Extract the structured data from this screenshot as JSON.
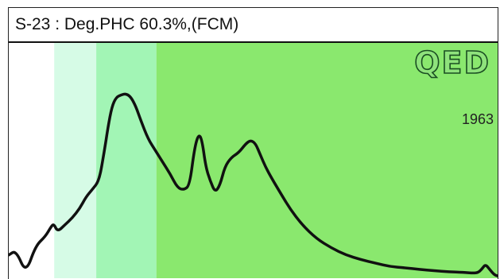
{
  "chart_data": {
    "type": "line",
    "title": "S-23 : Deg.PHC 60.3%,(FCM)",
    "logo_text": "QED",
    "annotation": "1963",
    "xlim": [
      0,
      100
    ],
    "ylim": [
      0,
      100
    ],
    "grid": false,
    "bands": [
      {
        "x0": 9.3,
        "x1": 17.9,
        "color": "#d6fbe6"
      },
      {
        "x0": 17.9,
        "x1": 30.2,
        "color": "#a2f5b5"
      },
      {
        "x0": 30.2,
        "x1": 100,
        "color": "#8ae86e"
      }
    ],
    "series": [
      {
        "color": "#111111",
        "x": [
          0,
          1.5,
          3.5,
          5.5,
          7.5,
          8.6,
          9.2,
          10.0,
          11.5,
          13.0,
          14.5,
          15.8,
          17.0,
          18.5,
          19.5,
          20.3,
          21.1,
          22.0,
          23.0,
          24.0,
          25.0,
          26.0,
          27.0,
          28.5,
          30.0,
          31.5,
          33.0,
          34.5,
          35.8,
          37.0,
          38.0,
          38.8,
          39.5,
          40.3,
          41.2,
          42.2,
          43.2,
          44.2,
          45.5,
          47.0,
          48.5,
          49.5,
          50.5,
          51.5,
          52.5,
          53.8,
          55.5,
          57.5,
          60.0,
          63.0,
          66.0,
          69.0,
          72.0,
          75.0,
          78.0,
          81.0,
          84.0,
          87.0,
          90.0,
          93.0,
          95.0,
          96.0,
          96.8,
          97.5,
          98.3,
          99.3,
          100
        ],
        "y": [
          10,
          12,
          2,
          14,
          18,
          22,
          23.5,
          20,
          23,
          26,
          30,
          35,
          38,
          42,
          54,
          65,
          74,
          78,
          79,
          79.5,
          78,
          74,
          68,
          60,
          55,
          50,
          45,
          39,
          38,
          40,
          56,
          62,
          60,
          48,
          42,
          37,
          40,
          48,
          52,
          54,
          58,
          59.5,
          58,
          53,
          48,
          43,
          37,
          30,
          23,
          17,
          13,
          10,
          8,
          6.5,
          5,
          4.5,
          3.8,
          3.2,
          2.8,
          2.5,
          2.2,
          2.4,
          4,
          6,
          4,
          1.5,
          1
        ]
      }
    ]
  }
}
